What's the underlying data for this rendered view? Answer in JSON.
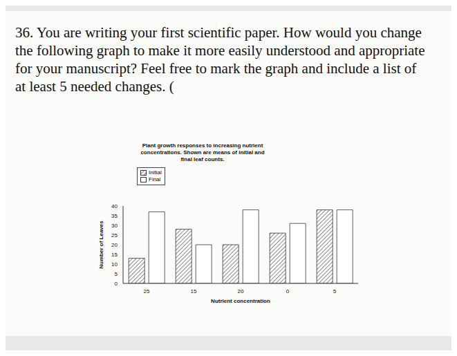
{
  "question": {
    "text": "36. You are writing your first scientific paper. How would you change the following graph to make it more easily understood and appropriate for your manuscript? Feel free to mark the graph and include a list of at least 5 needed changes. ("
  },
  "chart_data": {
    "type": "bar",
    "title": "Plant growth responses to increasing nutrient concentrations. Shown are means of initial and final leaf counts.",
    "categories": [
      "25",
      "15",
      "20",
      "0",
      "5"
    ],
    "series": [
      {
        "name": "Initial",
        "color": "#8a8a8a",
        "values": [
          13,
          28,
          20,
          26,
          38
        ]
      },
      {
        "name": "Final",
        "color": "#ffffff",
        "values": [
          37,
          20,
          38,
          31,
          38
        ]
      }
    ],
    "x_label": "Nutrient concentration",
    "y_label": "Number of Leaves",
    "ylim": [
      0,
      40
    ],
    "yticks": [
      0,
      5,
      10,
      15,
      20,
      25,
      30,
      35,
      40
    ],
    "legend": "top-left",
    "grid": false
  }
}
